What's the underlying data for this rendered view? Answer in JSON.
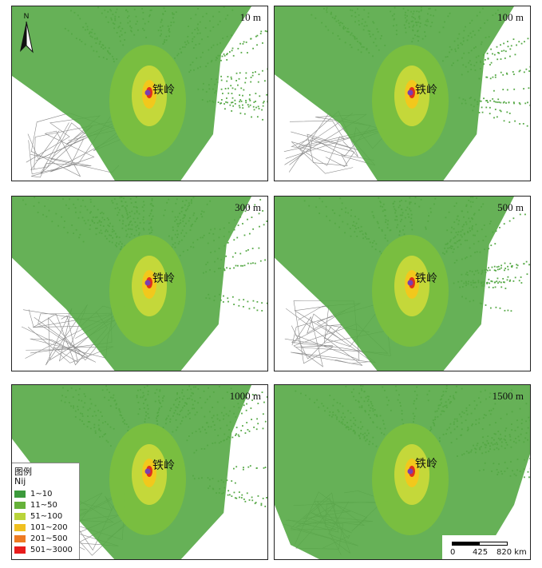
{
  "panels": [
    {
      "label": "10 m"
    },
    {
      "label": "100 m"
    },
    {
      "label": "300 m"
    },
    {
      "label": "500 m"
    },
    {
      "label": "1000 m"
    },
    {
      "label": "1500 m"
    }
  ],
  "city_label": "铁岭",
  "north_label": "N",
  "legend": {
    "title": "图例",
    "variable": "Nij",
    "items": [
      {
        "label": "1~10",
        "color": "#3c9a3c"
      },
      {
        "label": "11~50",
        "color": "#66b23a"
      },
      {
        "label": "51~100",
        "color": "#b9d43a"
      },
      {
        "label": "101~200",
        "color": "#f0c020"
      },
      {
        "label": "201~500",
        "color": "#ee7a22"
      },
      {
        "label": "501~3000",
        "color": "#e81c1c"
      }
    ]
  },
  "scale_bar": {
    "ticks": [
      "0",
      "425",
      "820 km"
    ]
  },
  "colors": {
    "outer": "#55a845",
    "mid": "#7abf3f",
    "inner": "#c4d83a",
    "core": "#f2c81c",
    "hot": "#e0301c",
    "point": "#7a3fb0",
    "boundary": "#8a8a8a"
  }
}
